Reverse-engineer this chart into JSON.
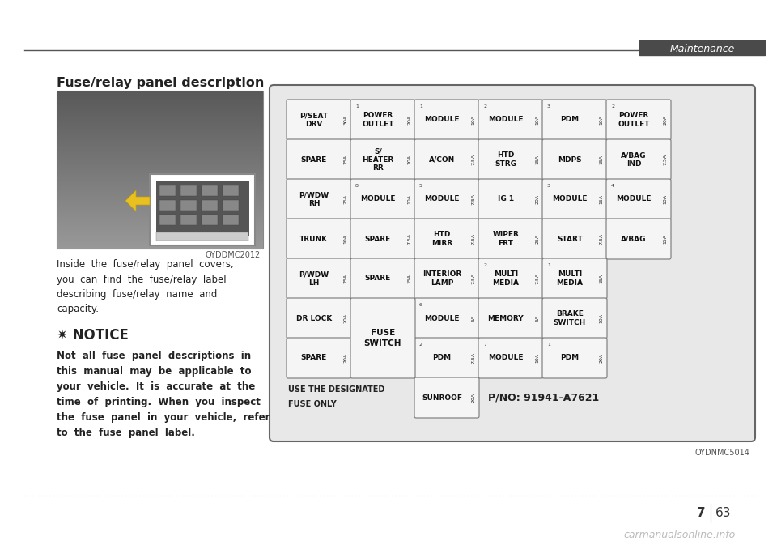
{
  "bg_color": "#ffffff",
  "title_text": "Fuse/relay panel description",
  "title_font_size": 11.5,
  "header_line_color": "#555555",
  "header_bar_color": "#4a4a4a",
  "header_label": "Maintenance",
  "body_text": "Inside  the  fuse/relay  panel  covers,\nyou  can  find  the  fuse/relay  label\ndescribing  fuse/relay  name  and\ncapacity.",
  "body_font_size": 8.5,
  "notice_star": "✷ NOTICE",
  "notice_font_size": 12,
  "notice_text": "Not  all  fuse  panel  descriptions  in\nthis  manual  may  be  applicable  to\nyour  vehicle.  It  is  accurate  at  the\ntime  of  printing.  When  you  inspect\nthe  fuse  panel  in  your  vehicle,  refer\nto  the  fuse  panel  label.",
  "notice_text_font_size": 8.5,
  "img1_caption": "OYDDMC2012",
  "img2_caption": "OYDNMC5014",
  "page_num": "7",
  "page_sub": "63",
  "watermark": "carmanualsonline.info",
  "dark_color": "#333333",
  "text_color": "#222222",
  "fuse_bg": "#e8e8e8",
  "fuse_cell_bg": "#f5f5f5",
  "fuse_border": "#888888"
}
